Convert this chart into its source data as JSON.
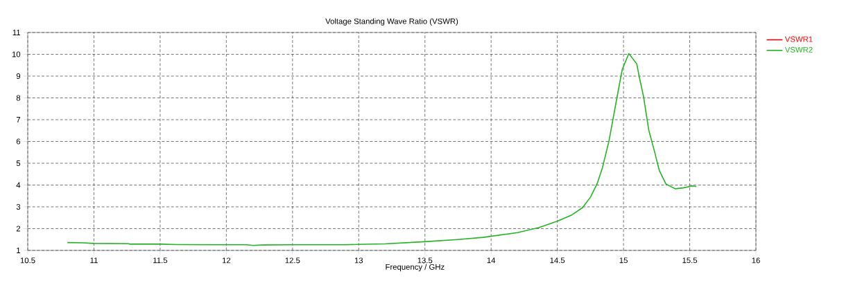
{
  "chart_data": {
    "type": "line",
    "title": "Voltage Standing Wave Ratio (VSWR)",
    "xlabel": "Frequency / GHz",
    "x": [
      10.8,
      10.91,
      11.0,
      11.26,
      11.27,
      11.5,
      11.62,
      11.9,
      12.15,
      12.2,
      12.28,
      12.5,
      12.9,
      13.0,
      13.2,
      13.5,
      13.75,
      13.94,
      14.2,
      14.36,
      14.5,
      14.61,
      14.69,
      14.75,
      14.8,
      14.84,
      14.89,
      14.95,
      14.99,
      15.04,
      15.1,
      15.12,
      15.15,
      15.19,
      15.24,
      15.27,
      15.32,
      15.39,
      15.45,
      15.52,
      15.55
    ],
    "series": [
      {
        "name": "VSWR1",
        "color": "#ff0000",
        "values": [
          null,
          null,
          null,
          null,
          null,
          null,
          null,
          null,
          null,
          null,
          null,
          null,
          null,
          null,
          null,
          null,
          null,
          null,
          null,
          null,
          null,
          null,
          null,
          null,
          null,
          null,
          null,
          null,
          null,
          null,
          null,
          null,
          null,
          null,
          null,
          null,
          null,
          null,
          null,
          null,
          null
        ]
      },
      {
        "name": "VSWR2",
        "color": "#22b422",
        "values": [
          1.36,
          1.35,
          1.32,
          1.31,
          1.29,
          1.29,
          1.27,
          1.26,
          1.26,
          1.23,
          1.25,
          1.26,
          1.26,
          1.28,
          1.3,
          1.4,
          1.5,
          1.6,
          1.82,
          2.05,
          2.34,
          2.63,
          2.96,
          3.44,
          4.05,
          4.78,
          6.02,
          8.0,
          9.3,
          10.03,
          9.56,
          8.93,
          8.1,
          6.54,
          5.4,
          4.67,
          4.05,
          3.83,
          3.87,
          3.96,
          3.93
        ]
      }
    ],
    "xlim": [
      10.5,
      16
    ],
    "ylim": [
      1,
      11
    ],
    "xticks": [
      10.5,
      11,
      11.5,
      12,
      12.5,
      13,
      13.5,
      14,
      14.5,
      15,
      15.5,
      16
    ],
    "yticks": [
      1,
      2,
      3,
      4,
      5,
      6,
      7,
      8,
      9,
      10,
      11
    ],
    "grid": true,
    "legend": "top right"
  }
}
